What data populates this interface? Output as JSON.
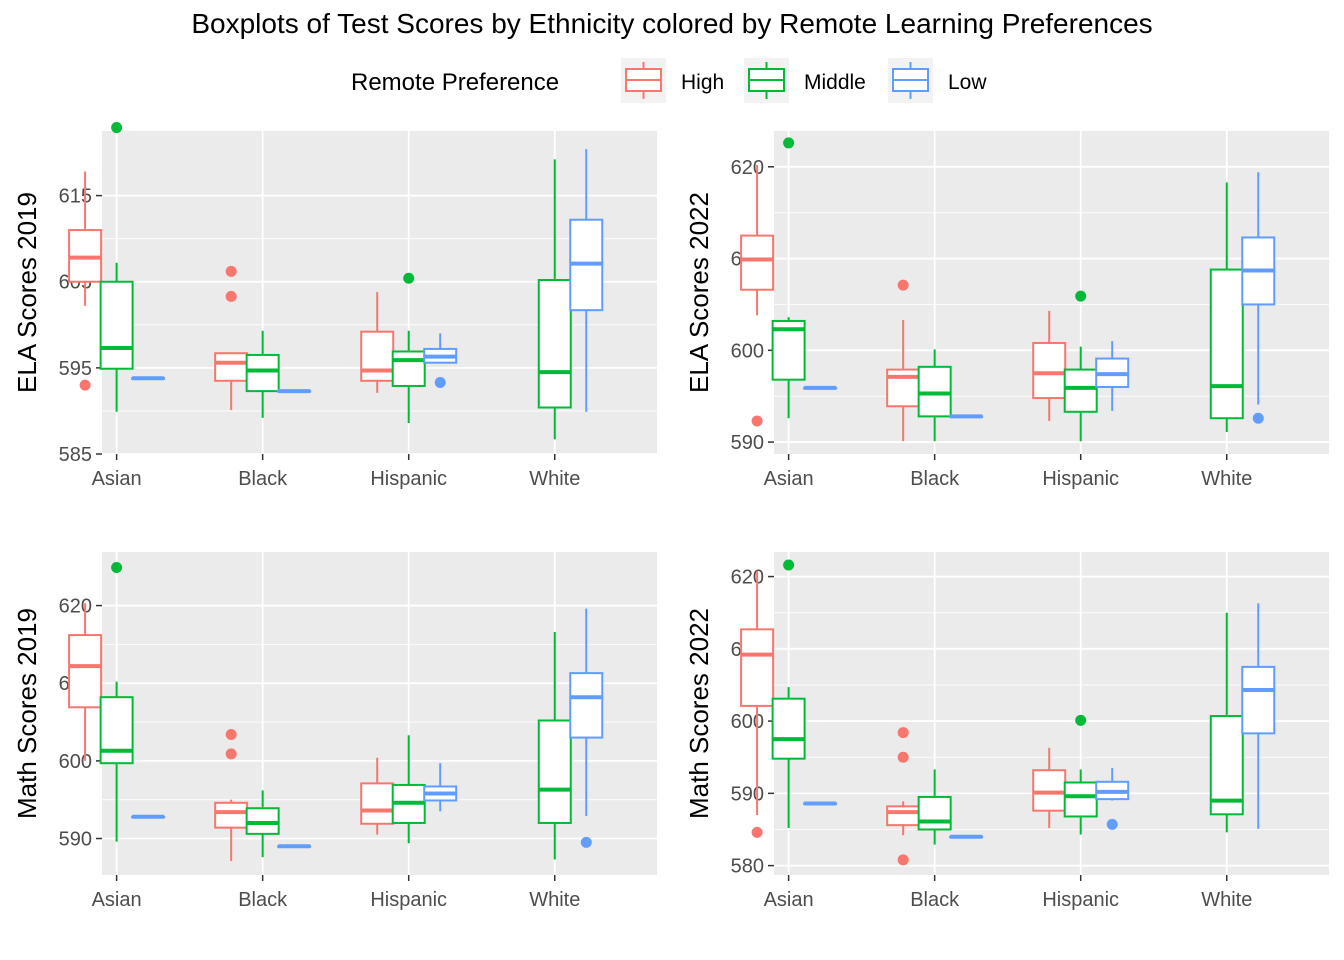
{
  "title": "Boxplots of Test Scores by Ethnicity colored by Remote Learning Preferences",
  "legend": {
    "title": "Remote Preference",
    "items": [
      {
        "label": "High",
        "color": "#F8766D"
      },
      {
        "label": "Middle",
        "color": "#00BA38"
      },
      {
        "label": "Low",
        "color": "#619CFF"
      }
    ]
  },
  "chart_data": [
    {
      "type": "boxplot",
      "ylabel": "ELA Scores 2019",
      "categories": [
        "Asian",
        "Black",
        "Hispanic",
        "White"
      ],
      "ylim": [
        585,
        622.5
      ],
      "yticks": [
        585,
        595,
        605,
        615
      ],
      "series": [
        {
          "name": "High",
          "boxes": [
            {
              "min": 602.2,
              "q1": 605,
              "median": 607.8,
              "q3": 611,
              "max": 617.8,
              "outliers": [
                593
              ]
            },
            {
              "min": 590.1,
              "q1": 593.5,
              "median": 595.6,
              "q3": 596.7,
              "max": 596.8,
              "outliers": [
                606.2,
                603.3
              ]
            },
            {
              "min": 592.1,
              "q1": 593.5,
              "median": 594.7,
              "q3": 599.2,
              "max": 603.8,
              "outliers": []
            },
            null
          ]
        },
        {
          "name": "Middle",
          "boxes": [
            {
              "min": 589.9,
              "q1": 594.9,
              "median": 597.3,
              "q3": 605,
              "max": 607.2,
              "outliers": [
                622.9
              ]
            },
            {
              "min": 589.2,
              "q1": 592.3,
              "median": 594.7,
              "q3": 596.5,
              "max": 599.3,
              "outliers": []
            },
            {
              "min": 588.6,
              "q1": 592.9,
              "median": 595.9,
              "q3": 596.9,
              "max": 599.3,
              "outliers": [
                605.4
              ]
            },
            {
              "min": 586.7,
              "q1": 590.4,
              "median": 594.5,
              "q3": 605.2,
              "max": 619.2,
              "outliers": []
            }
          ]
        },
        {
          "name": "Low",
          "boxes": [
            {
              "min": 593.8,
              "q1": 593.8,
              "median": 593.8,
              "q3": 593.8,
              "max": 593.8,
              "outliers": []
            },
            {
              "min": 592.3,
              "q1": 592.3,
              "median": 592.3,
              "q3": 592.3,
              "max": 592.3,
              "outliers": []
            },
            {
              "min": 595.6,
              "q1": 595.6,
              "median": 596.3,
              "q3": 597.2,
              "max": 599,
              "outliers": [
                593.3
              ]
            },
            {
              "min": 589.9,
              "q1": 601.7,
              "median": 607.1,
              "q3": 612.2,
              "max": 620.4,
              "outliers": []
            }
          ]
        }
      ]
    },
    {
      "type": "boxplot",
      "ylabel": "ELA Scores 2022",
      "categories": [
        "Asian",
        "Black",
        "Hispanic",
        "White"
      ],
      "ylim": [
        588.7,
        623.9
      ],
      "yticks": [
        590,
        600,
        610,
        620
      ],
      "series": [
        {
          "name": "High",
          "boxes": [
            {
              "min": 603.8,
              "q1": 606.6,
              "median": 609.9,
              "q3": 612.5,
              "max": 620.2,
              "outliers": [
                592.3
              ]
            },
            {
              "min": 590.1,
              "q1": 593.9,
              "median": 597.1,
              "q3": 597.9,
              "max": 603.3,
              "outliers": [
                607.1
              ]
            },
            {
              "min": 592.3,
              "q1": 594.8,
              "median": 597.5,
              "q3": 600.8,
              "max": 604.3,
              "outliers": []
            },
            null
          ]
        },
        {
          "name": "Middle",
          "boxes": [
            {
              "min": 592.6,
              "q1": 596.8,
              "median": 602.3,
              "q3": 603.2,
              "max": 603.6,
              "outliers": [
                622.6
              ]
            },
            {
              "min": 590.1,
              "q1": 592.8,
              "median": 595.3,
              "q3": 598.2,
              "max": 600.1,
              "outliers": []
            },
            {
              "min": 590.1,
              "q1": 593.3,
              "median": 595.9,
              "q3": 597.9,
              "max": 600.4,
              "outliers": [
                605.9
              ]
            },
            {
              "min": 591.1,
              "q1": 592.6,
              "median": 596.1,
              "q3": 608.8,
              "max": 618.3,
              "outliers": []
            }
          ]
        },
        {
          "name": "Low",
          "boxes": [
            {
              "min": 595.9,
              "q1": 595.9,
              "median": 595.9,
              "q3": 595.9,
              "max": 595.9,
              "outliers": []
            },
            {
              "min": 592.8,
              "q1": 592.8,
              "median": 592.8,
              "q3": 592.8,
              "max": 592.8,
              "outliers": []
            },
            {
              "min": 593.4,
              "q1": 596,
              "median": 597.4,
              "q3": 599.1,
              "max": 601,
              "outliers": []
            },
            {
              "min": 594.1,
              "q1": 605,
              "median": 608.7,
              "q3": 612.3,
              "max": 619.4,
              "outliers": [
                592.6
              ]
            }
          ]
        }
      ]
    },
    {
      "type": "boxplot",
      "ylabel": "Math Scores 2019",
      "categories": [
        "Asian",
        "Black",
        "Hispanic",
        "White"
      ],
      "ylim": [
        585.3,
        626.9
      ],
      "yticks": [
        590,
        600,
        610,
        620
      ],
      "series": [
        {
          "name": "High",
          "boxes": [
            {
              "min": 600,
              "q1": 606.9,
              "median": 612.2,
              "q3": 616.2,
              "max": 620.3,
              "outliers": []
            },
            {
              "min": 587.1,
              "q1": 591.4,
              "median": 593.4,
              "q3": 594.6,
              "max": 595,
              "outliers": [
                603.4,
                600.9
              ]
            },
            {
              "min": 590.5,
              "q1": 591.9,
              "median": 593.6,
              "q3": 597.1,
              "max": 600.4,
              "outliers": []
            },
            null
          ]
        },
        {
          "name": "Middle",
          "boxes": [
            {
              "min": 589.6,
              "q1": 599.7,
              "median": 601.3,
              "q3": 608.2,
              "max": 610.2,
              "outliers": [
                624.9
              ]
            },
            {
              "min": 587.6,
              "q1": 590.6,
              "median": 592,
              "q3": 593.9,
              "max": 596.2,
              "outliers": []
            },
            {
              "min": 589.4,
              "q1": 592,
              "median": 594.6,
              "q3": 596.9,
              "max": 603.3,
              "outliers": []
            },
            {
              "min": 587.3,
              "q1": 592,
              "median": 596.3,
              "q3": 605.2,
              "max": 616.6,
              "outliers": []
            }
          ]
        },
        {
          "name": "Low",
          "boxes": [
            {
              "min": 592.8,
              "q1": 592.8,
              "median": 592.8,
              "q3": 592.8,
              "max": 592.8,
              "outliers": []
            },
            {
              "min": 589,
              "q1": 589,
              "median": 589,
              "q3": 589,
              "max": 589,
              "outliers": []
            },
            {
              "min": 593.5,
              "q1": 594.9,
              "median": 595.8,
              "q3": 596.7,
              "max": 599.7,
              "outliers": []
            },
            {
              "min": 592.9,
              "q1": 603,
              "median": 608.2,
              "q3": 611.3,
              "max": 619.6,
              "outliers": [
                589.5
              ]
            }
          ]
        }
      ]
    },
    {
      "type": "boxplot",
      "ylabel": "Math Scores 2022",
      "categories": [
        "Asian",
        "Black",
        "Hispanic",
        "White"
      ],
      "ylim": [
        578.7,
        623.4
      ],
      "yticks": [
        580,
        590,
        600,
        610,
        620
      ],
      "series": [
        {
          "name": "High",
          "boxes": [
            {
              "min": 587,
              "q1": 602.1,
              "median": 609.2,
              "q3": 612.7,
              "max": 620.8,
              "outliers": [
                584.6
              ]
            },
            {
              "min": 584.2,
              "q1": 585.6,
              "median": 587.4,
              "q3": 588.2,
              "max": 588.9,
              "outliers": [
                598.4,
                595,
                580.8
              ]
            },
            {
              "min": 585.2,
              "q1": 587.6,
              "median": 590.1,
              "q3": 593.2,
              "max": 596.3,
              "outliers": []
            },
            null
          ]
        },
        {
          "name": "Middle",
          "boxes": [
            {
              "min": 585.2,
              "q1": 594.8,
              "median": 597.5,
              "q3": 603.1,
              "max": 604.7,
              "outliers": [
                621.6
              ]
            },
            {
              "min": 582.9,
              "q1": 585,
              "median": 586.1,
              "q3": 589.5,
              "max": 593.3,
              "outliers": []
            },
            {
              "min": 584.3,
              "q1": 586.8,
              "median": 589.6,
              "q3": 591.5,
              "max": 593.3,
              "outliers": [
                600.1
              ]
            },
            {
              "min": 584.6,
              "q1": 587.1,
              "median": 589,
              "q3": 600.7,
              "max": 615,
              "outliers": []
            }
          ]
        },
        {
          "name": "Low",
          "boxes": [
            {
              "min": 588.6,
              "q1": 588.6,
              "median": 588.6,
              "q3": 588.6,
              "max": 588.6,
              "outliers": []
            },
            {
              "min": 584,
              "q1": 584,
              "median": 584,
              "q3": 584,
              "max": 584,
              "outliers": []
            },
            {
              "min": 589,
              "q1": 589.2,
              "median": 590.2,
              "q3": 591.6,
              "max": 593.5,
              "outliers": [
                585.7
              ]
            },
            {
              "min": 585.1,
              "q1": 598.3,
              "median": 604.3,
              "q3": 607.5,
              "max": 616.3,
              "outliers": []
            }
          ]
        }
      ]
    }
  ]
}
